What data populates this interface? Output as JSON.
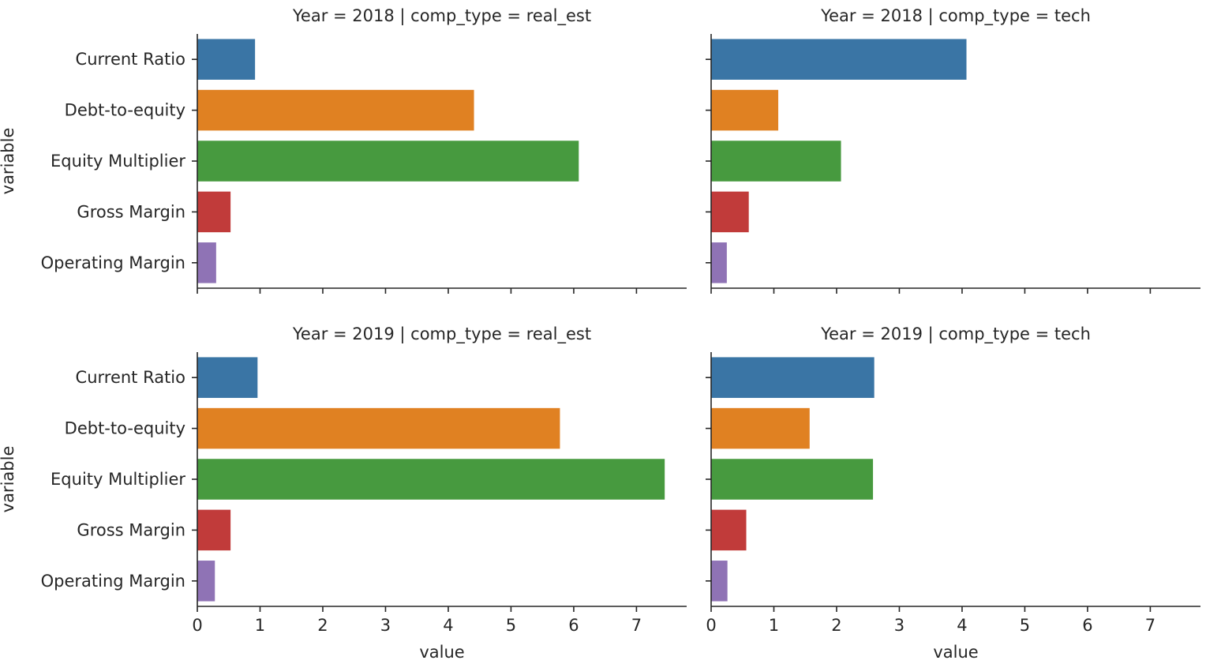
{
  "colors": [
    "#3a75a5",
    "#e08122",
    "#479a3f",
    "#c13b3a",
    "#8f73b5"
  ],
  "chart_data": [
    {
      "type": "bar",
      "orientation": "horizontal",
      "title": "Year = 2018 | comp_type = real_est",
      "categories": [
        "Current Ratio",
        "Debt-to-equity",
        "Equity Multiplier",
        "Gross Margin",
        "Operating Margin"
      ],
      "values": [
        0.92,
        4.41,
        6.08,
        0.53,
        0.3
      ],
      "xlabel": "",
      "ylabel": "variable",
      "xlim": [
        0,
        7.8
      ],
      "xticks": [
        "0",
        "1",
        "2",
        "3",
        "4",
        "5",
        "6",
        "7"
      ]
    },
    {
      "type": "bar",
      "orientation": "horizontal",
      "title": "Year = 2018 | comp_type = tech",
      "categories": [
        "Current Ratio",
        "Debt-to-equity",
        "Equity Multiplier",
        "Gross Margin",
        "Operating Margin"
      ],
      "values": [
        4.07,
        1.07,
        2.07,
        0.6,
        0.25
      ],
      "xlabel": "",
      "ylabel": "",
      "xlim": [
        0,
        7.8
      ],
      "xticks": [
        "0",
        "1",
        "2",
        "3",
        "4",
        "5",
        "6",
        "7"
      ]
    },
    {
      "type": "bar",
      "orientation": "horizontal",
      "title": "Year = 2019 | comp_type = real_est",
      "categories": [
        "Current Ratio",
        "Debt-to-equity",
        "Equity Multiplier",
        "Gross Margin",
        "Operating Margin"
      ],
      "values": [
        0.96,
        5.78,
        7.45,
        0.53,
        0.28
      ],
      "xlabel": "value",
      "ylabel": "variable",
      "xlim": [
        0,
        7.8
      ],
      "xticks": [
        "0",
        "1",
        "2",
        "3",
        "4",
        "5",
        "6",
        "7"
      ]
    },
    {
      "type": "bar",
      "orientation": "horizontal",
      "title": "Year = 2019 | comp_type = tech",
      "categories": [
        "Current Ratio",
        "Debt-to-equity",
        "Equity Multiplier",
        "Gross Margin",
        "Operating Margin"
      ],
      "values": [
        2.6,
        1.57,
        2.58,
        0.56,
        0.26
      ],
      "xlabel": "value",
      "ylabel": "",
      "xlim": [
        0,
        7.8
      ],
      "xticks": [
        "0",
        "1",
        "2",
        "3",
        "4",
        "5",
        "6",
        "7"
      ]
    }
  ]
}
